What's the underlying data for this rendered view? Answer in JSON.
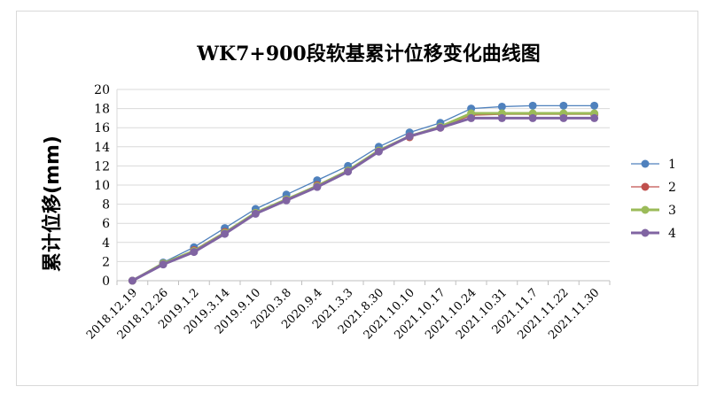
{
  "chart_data": {
    "type": "line",
    "title": "WK7+900段软基累计位移变化曲线图",
    "xlabel": "",
    "ylabel": "累计位移(mm)",
    "ylim": [
      0,
      20
    ],
    "yticks": [
      0,
      2,
      4,
      6,
      8,
      10,
      12,
      14,
      16,
      18,
      20
    ],
    "grid": true,
    "legend_position": "right",
    "categories": [
      "2018.12.19",
      "2018.12.26",
      "2019.1.2",
      "2019.3.14",
      "2019.9.10",
      "2020.3.8",
      "2020.9.4",
      "2021.3.3",
      "2021.8.30",
      "2021.10.10",
      "2021.10.17",
      "2021.10.24",
      "2021.10.31",
      "2021.11.7",
      "2021.11.22",
      "2021.11.30"
    ],
    "series": [
      {
        "name": "1",
        "color": "#4f81bd",
        "values": [
          0,
          1.9,
          3.5,
          5.5,
          7.5,
          9.0,
          10.5,
          12.0,
          14.0,
          15.5,
          16.5,
          18.0,
          18.2,
          18.3,
          18.3,
          18.3
        ]
      },
      {
        "name": "2",
        "color": "#c0504d",
        "values": [
          0,
          1.8,
          3.2,
          5.1,
          7.1,
          8.5,
          10.0,
          11.5,
          13.6,
          15.0,
          16.0,
          17.3,
          17.4,
          17.4,
          17.4,
          17.4
        ]
      },
      {
        "name": "3",
        "color": "#9bbb59",
        "values": [
          0,
          1.8,
          3.1,
          5.0,
          7.1,
          8.5,
          9.9,
          11.5,
          13.6,
          15.1,
          16.1,
          17.5,
          17.5,
          17.5,
          17.5,
          17.5
        ]
      },
      {
        "name": "4",
        "color": "#8064a2",
        "values": [
          0,
          1.7,
          3.0,
          4.9,
          7.0,
          8.4,
          9.8,
          11.4,
          13.5,
          15.1,
          16.0,
          17.0,
          17.0,
          17.0,
          17.0,
          17.0
        ]
      }
    ]
  }
}
